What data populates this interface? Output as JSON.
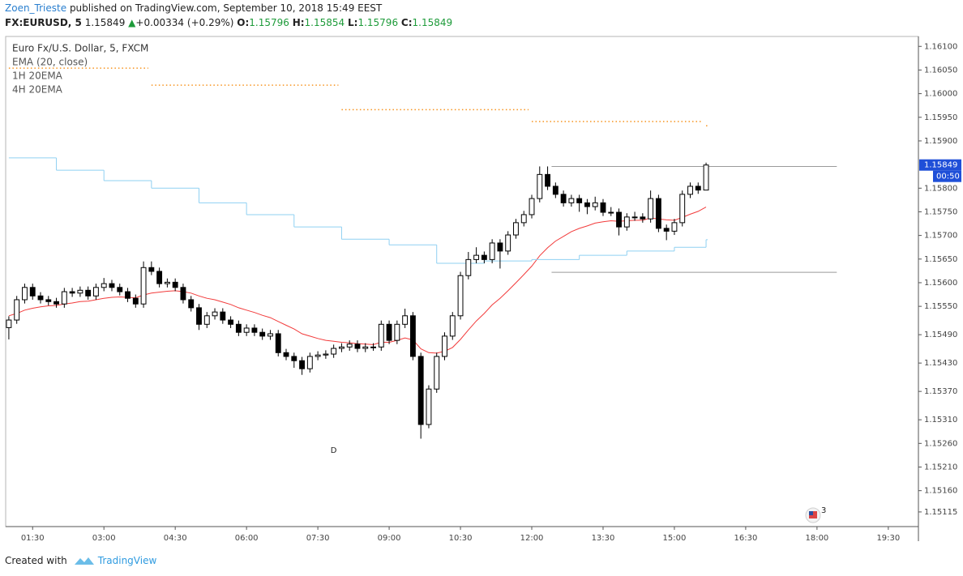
{
  "header": {
    "author": "Zoen_Trieste",
    "published": "published on TradingView.com, September 10, 2018 15:49 EEST"
  },
  "quote": {
    "symbol": "FX:EURUSD, 5",
    "arrow": "▲",
    "change": "+0.00334 (+0.29%)",
    "o_label": "O:",
    "h_label": "H:",
    "l_label": "L:",
    "c_label": "C:"
  },
  "chart_data": {
    "type": "candlestick",
    "title": "Euro Fx/U.S. Dollar, 5, FXCM",
    "x": [
      "01:00",
      "01:10",
      "01:20",
      "01:30",
      "01:40",
      "01:50",
      "02:00",
      "02:10",
      "02:20",
      "02:30",
      "02:40",
      "02:50",
      "03:00",
      "03:10",
      "03:20",
      "03:30",
      "03:40",
      "03:50",
      "04:00",
      "04:10",
      "04:20",
      "04:30",
      "04:40",
      "04:50",
      "05:00",
      "05:10",
      "05:20",
      "05:30",
      "05:40",
      "05:50",
      "06:00",
      "06:10",
      "06:20",
      "06:30",
      "06:40",
      "06:50",
      "07:00",
      "07:10",
      "07:20",
      "07:30",
      "07:40",
      "07:50",
      "08:00",
      "08:10",
      "08:20",
      "08:30",
      "08:40",
      "08:50",
      "09:00",
      "09:10",
      "09:20",
      "09:30",
      "09:40",
      "09:50",
      "10:00",
      "10:10",
      "10:20",
      "10:30",
      "10:40",
      "10:50",
      "11:00",
      "11:10",
      "11:20",
      "11:30",
      "11:40",
      "11:50",
      "12:00",
      "12:10",
      "12:20",
      "12:30",
      "12:40",
      "12:50",
      "13:00",
      "13:10",
      "13:20",
      "13:30",
      "13:40",
      "13:50",
      "14:00",
      "14:10",
      "14:20",
      "14:30",
      "14:40",
      "14:50",
      "15:00",
      "15:10",
      "15:20",
      "15:30",
      "15:40"
    ],
    "open": [
      1.15505,
      1.15521,
      1.15564,
      1.1559,
      1.15572,
      1.15564,
      1.1556,
      1.15555,
      1.15581,
      1.15578,
      1.15584,
      1.15572,
      1.1559,
      1.15598,
      1.1559,
      1.15581,
      1.15567,
      1.15555,
      1.15632,
      1.15624,
      1.15598,
      1.15601,
      1.1559,
      1.15564,
      1.15547,
      1.15512,
      1.1553,
      1.15538,
      1.15521,
      1.15512,
      1.15495,
      1.15504,
      1.15495,
      1.15487,
      1.15492,
      1.15452,
      1.15444,
      1.15435,
      1.15418,
      1.15444,
      1.15447,
      1.15449,
      1.15461,
      1.15464,
      1.1547,
      1.15461,
      1.15464,
      1.15464,
      1.15512,
      1.15478,
      1.15512,
      1.1553,
      1.15444,
      1.153,
      1.15375,
      1.15444,
      1.15487,
      1.1553,
      1.15615,
      1.15649,
      1.15658,
      1.15649,
      1.15684,
      1.15667,
      1.15701,
      1.15727,
      1.15744,
      1.15778,
      1.15829,
      1.15804,
      1.15787,
      1.15769,
      1.15778,
      1.15769,
      1.15761,
      1.15769,
      1.15749,
      1.15749,
      1.15718,
      1.15739,
      1.15739,
      1.15735,
      1.15778,
      1.15715,
      1.15709,
      1.15727,
      1.15787,
      1.15804,
      1.15796
    ],
    "high": [
      1.15529,
      1.15572,
      1.15598,
      1.15598,
      1.1558,
      1.15572,
      1.15568,
      1.15589,
      1.15589,
      1.15592,
      1.15592,
      1.15598,
      1.1561,
      1.15606,
      1.15598,
      1.15589,
      1.15575,
      1.15645,
      1.15645,
      1.15632,
      1.15609,
      1.15609,
      1.15598,
      1.15572,
      1.15555,
      1.15538,
      1.15546,
      1.15546,
      1.15529,
      1.1552,
      1.15512,
      1.15512,
      1.15503,
      1.155,
      1.155,
      1.1546,
      1.15452,
      1.15443,
      1.15452,
      1.15455,
      1.15457,
      1.15469,
      1.15472,
      1.15478,
      1.15478,
      1.15472,
      1.15472,
      1.1552,
      1.1552,
      1.1552,
      1.15545,
      1.15538,
      1.15452,
      1.15383,
      1.15452,
      1.15495,
      1.15538,
      1.15623,
      1.15665,
      1.15675,
      1.15666,
      1.15692,
      1.15692,
      1.15709,
      1.15735,
      1.15752,
      1.15786,
      1.15846,
      1.15846,
      1.15812,
      1.15795,
      1.15786,
      1.15786,
      1.15777,
      1.15782,
      1.15777,
      1.1576,
      1.15757,
      1.15747,
      1.1575,
      1.15747,
      1.15795,
      1.15786,
      1.15723,
      1.15735,
      1.15795,
      1.15812,
      1.15812,
      1.15854
    ],
    "low": [
      1.1548,
      1.15513,
      1.15556,
      1.15564,
      1.15556,
      1.15552,
      1.15547,
      1.15547,
      1.1557,
      1.1557,
      1.15564,
      1.15564,
      1.15582,
      1.15582,
      1.15573,
      1.15559,
      1.15547,
      1.15547,
      1.15616,
      1.1559,
      1.1559,
      1.15582,
      1.15556,
      1.15539,
      1.155,
      1.15504,
      1.15522,
      1.15513,
      1.15504,
      1.15487,
      1.15487,
      1.15487,
      1.15479,
      1.15479,
      1.15444,
      1.15436,
      1.1542,
      1.15405,
      1.1541,
      1.15436,
      1.15439,
      1.15441,
      1.15453,
      1.15456,
      1.15453,
      1.15453,
      1.15456,
      1.15456,
      1.1547,
      1.1547,
      1.15504,
      1.15436,
      1.1527,
      1.15292,
      1.15367,
      1.15436,
      1.15479,
      1.15522,
      1.15607,
      1.15641,
      1.15641,
      1.15641,
      1.1563,
      1.15659,
      1.15693,
      1.15719,
      1.15736,
      1.1577,
      1.15796,
      1.15779,
      1.15761,
      1.15761,
      1.1575,
      1.15745,
      1.15753,
      1.15741,
      1.15741,
      1.157,
      1.1571,
      1.15731,
      1.15727,
      1.15727,
      1.15707,
      1.1569,
      1.15701,
      1.15719,
      1.15779,
      1.15788,
      1.15796
    ],
    "close": [
      1.15521,
      1.15564,
      1.1559,
      1.15572,
      1.15564,
      1.1556,
      1.15555,
      1.15581,
      1.15578,
      1.15584,
      1.15572,
      1.1559,
      1.15598,
      1.1559,
      1.15581,
      1.15567,
      1.15555,
      1.15632,
      1.15624,
      1.15598,
      1.15601,
      1.1559,
      1.15564,
      1.15547,
      1.15512,
      1.1553,
      1.15538,
      1.15521,
      1.15512,
      1.15495,
      1.15504,
      1.15495,
      1.15487,
      1.15492,
      1.15452,
      1.15444,
      1.15435,
      1.15418,
      1.15444,
      1.15447,
      1.15449,
      1.15461,
      1.15464,
      1.1547,
      1.15461,
      1.15464,
      1.15464,
      1.15512,
      1.15478,
      1.15512,
      1.1553,
      1.15444,
      1.153,
      1.15375,
      1.15444,
      1.15487,
      1.1553,
      1.15615,
      1.15649,
      1.15658,
      1.15649,
      1.15684,
      1.15667,
      1.15701,
      1.15727,
      1.15744,
      1.15778,
      1.15829,
      1.15804,
      1.15787,
      1.15769,
      1.15778,
      1.15769,
      1.15761,
      1.15769,
      1.15749,
      1.15749,
      1.15718,
      1.15739,
      1.15739,
      1.15735,
      1.15778,
      1.15715,
      1.15709,
      1.15727,
      1.15787,
      1.15804,
      1.15796,
      1.15849
    ],
    "up_color": "#ffffff",
    "down_color": "#000000",
    "series": [
      {
        "name": "EMA (20, close)",
        "color": "#f23b3b",
        "style": "line",
        "values": [
          1.1553,
          1.15535,
          1.15542,
          1.15546,
          1.15549,
          1.15551,
          1.15552,
          1.15555,
          1.15557,
          1.1556,
          1.15561,
          1.15564,
          1.15567,
          1.15569,
          1.1557,
          1.15569,
          1.15568,
          1.15574,
          1.15578,
          1.1558,
          1.15582,
          1.15583,
          1.15581,
          1.15578,
          1.15572,
          1.15567,
          1.15564,
          1.15559,
          1.15554,
          1.15547,
          1.15542,
          1.15537,
          1.15531,
          1.15526,
          1.15518,
          1.1551,
          1.15502,
          1.15492,
          1.15487,
          1.15482,
          1.15478,
          1.15476,
          1.15474,
          1.15473,
          1.15471,
          1.1547,
          1.15469,
          1.15474,
          1.15474,
          1.15478,
          1.15483,
          1.15479,
          1.1546,
          1.15452,
          1.15451,
          1.15455,
          1.15463,
          1.1548,
          1.155,
          1.15519,
          1.15535,
          1.15553,
          1.15567,
          1.15583,
          1.156,
          1.15617,
          1.15635,
          1.15657,
          1.15674,
          1.15688,
          1.15698,
          1.15708,
          1.15715,
          1.1572,
          1.15726,
          1.15729,
          1.15731,
          1.1573,
          1.15731,
          1.15732,
          1.15732,
          1.15737,
          1.15735,
          1.15733,
          1.15732,
          1.15738,
          1.15745,
          1.15751,
          1.1576
        ]
      },
      {
        "name": "1H 20EMA",
        "color": "#8fd0f2",
        "style": "step",
        "x": [
          "01:00",
          "02:00",
          "03:00",
          "04:00",
          "05:00",
          "06:00",
          "07:00",
          "08:00",
          "09:00",
          "10:00",
          "11:00",
          "12:00",
          "13:00",
          "14:00",
          "15:00",
          "15:40"
        ],
        "values": [
          1.15864,
          1.15838,
          1.15816,
          1.158,
          1.15769,
          1.15744,
          1.15718,
          1.15692,
          1.1568,
          1.15641,
          1.15646,
          1.15649,
          1.15658,
          1.15667,
          1.15675,
          1.15691
        ]
      },
      {
        "name": "4H 20EMA",
        "color": "#f7931e",
        "style": "dotted-step",
        "x": [
          "01:00",
          "04:00",
          "08:00",
          "12:00",
          "15:40"
        ],
        "values": [
          1.16054,
          1.16018,
          1.15966,
          1.15941,
          1.15932
        ]
      }
    ],
    "levels": [
      {
        "value": 1.15846,
        "from": "12:25",
        "to": "18:25"
      },
      {
        "value": 1.15622,
        "from": "12:25",
        "to": "18:25"
      }
    ],
    "annotations": [
      {
        "text": "D",
        "x": "07:50",
        "y": 1.15245
      }
    ],
    "events": [
      {
        "x": "17:55",
        "label": "3"
      }
    ],
    "countdown": "00:50",
    "xlim": [
      "00:56",
      "20:08"
    ],
    "xticks": [
      "01:30",
      "03:00",
      "04:30",
      "06:00",
      "07:30",
      "09:00",
      "10:30",
      "12:00",
      "13:30",
      "15:00",
      "16:30",
      "18:00",
      "19:30"
    ],
    "ylim": [
      1.15084,
      1.16121
    ],
    "yticks": [
      {
        "value": 1.161,
        "label": "1.16100"
      },
      {
        "value": 1.1605,
        "label": "1.16050"
      },
      {
        "value": 1.16,
        "label": "1.16000"
      },
      {
        "value": 1.1595,
        "label": "1.15950"
      },
      {
        "value": 1.159,
        "label": "1.15900"
      },
      {
        "value": 1.158,
        "label": "1.15800"
      },
      {
        "value": 1.1575,
        "label": "1.15750"
      },
      {
        "value": 1.157,
        "label": "1.15700"
      },
      {
        "value": 1.1565,
        "label": "1.15650"
      },
      {
        "value": 1.156,
        "label": "1.15600"
      },
      {
        "value": 1.1555,
        "label": "1.15550"
      },
      {
        "value": 1.1549,
        "label": "1.15490"
      },
      {
        "value": 1.1543,
        "label": "1.15430"
      },
      {
        "value": 1.1537,
        "label": "1.15370"
      },
      {
        "value": 1.1531,
        "label": "1.15310"
      },
      {
        "value": 1.1526,
        "label": "1.15260"
      },
      {
        "value": 1.1521,
        "label": "1.15210"
      },
      {
        "value": 1.1516,
        "label": "1.15160"
      },
      {
        "value": 1.15115,
        "label": "1.15115"
      }
    ]
  },
  "footer": {
    "created": "Created with",
    "brand": "TradingView"
  }
}
